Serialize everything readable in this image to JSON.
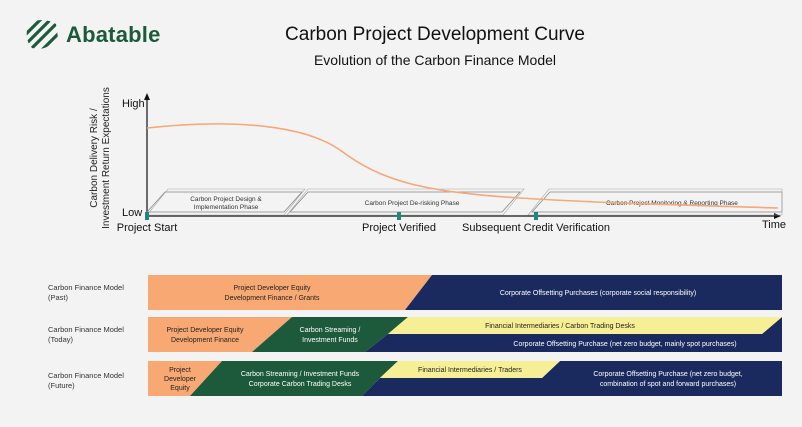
{
  "logo": {
    "name": "Abatable",
    "icon": "abatable-stripes-logo-icon",
    "color": "#1d5a3c"
  },
  "title": "Carbon Project Development Curve",
  "subtitle": "Evolution of the Carbon Finance Model",
  "curve_chart": {
    "y_axis_label_line1": "Carbon Delivery Risk /",
    "y_axis_label_line2": "Investment Return Expectations",
    "y_high": "High",
    "y_low": "Low",
    "x_end_label": "Time",
    "milestones": [
      "Project Start",
      "Project Verified",
      "Subsequent Credit Verification"
    ],
    "phases": [
      {
        "line1": "Carbon Project Design &",
        "line2": "Implementation Phase"
      },
      {
        "line1": "Carbon Project De-risking Phase",
        "line2": ""
      },
      {
        "line1": "Carbon Project Monitoring & Reporting Phase",
        "line2": ""
      }
    ],
    "curve_color": "#f5a878",
    "marker_color": "#1a8a7a"
  },
  "finance_models": {
    "colors": {
      "orange": "#f8a873",
      "green": "#1d5a3c",
      "yellow": "#f7ef96",
      "navy": "#1b2a5e"
    },
    "rows": [
      {
        "label_line1": "Carbon Finance Model",
        "label_line2": "(Past)",
        "segments": {
          "orange": [
            "Project Developer Equity",
            "Development Finance / Grants"
          ],
          "navy": [
            "Corporate Offsetting Purchases (corporate social responsibility)"
          ]
        }
      },
      {
        "label_line1": "Carbon Finance Model",
        "label_line2": "(Today)",
        "segments": {
          "orange": [
            "Project Developer Equity",
            "Development Finance"
          ],
          "green": [
            "Carbon Streaming /",
            "Investment Funds"
          ],
          "yellow": [
            "Financial Intermediaries / Carbon Trading Desks"
          ],
          "navy": [
            "Corporate Offsetting Purchase (net zero budget, mainly spot purchases)"
          ]
        }
      },
      {
        "label_line1": "Carbon Finance Model",
        "label_line2": "(Future)",
        "segments": {
          "orange": [
            "Project",
            "Developer",
            "Equity"
          ],
          "green": [
            "Carbon Streaming / Investment Funds",
            "Corporate Carbon Trading Desks"
          ],
          "yellow": [
            "Financial Intermediaries / Traders"
          ],
          "navy": [
            "Corporate Offsetting Purchase (net zero budget,",
            "combination of spot and forward purchases)"
          ]
        }
      }
    ]
  }
}
